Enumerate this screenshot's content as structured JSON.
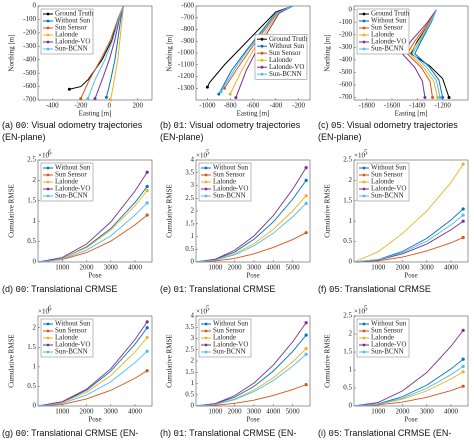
{
  "chart_data": [
    {
      "type": "trajectory",
      "caption": {
        "label": "(a)",
        "seq": "00",
        "text": ": Visual odometry trajectories (EN-plane)"
      },
      "xlabel": "Easting [m]",
      "ylabel": "Northing [m]",
      "xlim": [
        -500,
        300
      ],
      "ylim": [
        -700,
        0
      ],
      "xticks": [
        -400,
        -200,
        0,
        200
      ],
      "yticks": [
        -700,
        -600,
        -500,
        -400,
        -300,
        -200,
        -100,
        0
      ],
      "legend": "upper left",
      "series": [
        {
          "name": "Ground Truth",
          "color": "#000000",
          "x": [
            100,
            60,
            20,
            -50,
            -150,
            -200,
            -280
          ],
          "values": [
            0,
            -100,
            -250,
            -400,
            -550,
            -600,
            -620
          ]
        },
        {
          "name": "Without Sun",
          "color": "#0072bd",
          "x": [
            100,
            80,
            60,
            40,
            10,
            -20
          ],
          "values": [
            0,
            -100,
            -250,
            -400,
            -550,
            -680
          ]
        },
        {
          "name": "Sun Sensor",
          "color": "#d95319",
          "x": [
            100,
            60,
            10,
            -60,
            -140,
            -200
          ],
          "values": [
            0,
            -100,
            -250,
            -400,
            -550,
            -690
          ]
        },
        {
          "name": "Lalonde",
          "color": "#edb120",
          "x": [
            100,
            90,
            75,
            60,
            35,
            10
          ],
          "values": [
            0,
            -100,
            -250,
            -400,
            -550,
            -700
          ]
        },
        {
          "name": "Lalonde-VO",
          "color": "#7e2f8e",
          "x": [
            100,
            70,
            40,
            0,
            -50,
            -100
          ],
          "values": [
            0,
            -100,
            -250,
            -400,
            -550,
            -690
          ]
        },
        {
          "name": "Sun-BCNN",
          "color": "#4dbeee",
          "x": [
            100,
            65,
            25,
            -30,
            -100,
            -150
          ],
          "values": [
            0,
            -100,
            -250,
            -400,
            -550,
            -690
          ]
        }
      ]
    },
    {
      "type": "trajectory",
      "caption": {
        "label": "(b)",
        "seq": "01",
        "text": ": Visual odometry trajectories (EN-plane)"
      },
      "xlabel": "Easting [m]",
      "ylabel": "Northing [m]",
      "xlim": [
        -1100,
        -100
      ],
      "ylim": [
        -1400,
        -600
      ],
      "xticks": [
        -1000,
        -800,
        -600,
        -400,
        -200
      ],
      "yticks": [
        -1300,
        -1200,
        -1100,
        -1000,
        -900,
        -800,
        -700,
        -600
      ],
      "legend": "center right",
      "series": [
        {
          "name": "Ground Truth",
          "color": "#000000",
          "x": [
            -250,
            -400,
            -550,
            -700,
            -850,
            -980,
            -1000
          ],
          "values": [
            -600,
            -650,
            -800,
            -950,
            -1100,
            -1250,
            -1290
          ]
        },
        {
          "name": "Without Sun",
          "color": "#0072bd",
          "x": [
            -250,
            -400,
            -530,
            -660,
            -790,
            -900
          ],
          "values": [
            -600,
            -660,
            -820,
            -980,
            -1150,
            -1350
          ]
        },
        {
          "name": "Sun Sensor",
          "color": "#d95319",
          "x": [
            -250,
            -390,
            -510,
            -630,
            -750,
            -850
          ],
          "values": [
            -600,
            -660,
            -820,
            -980,
            -1150,
            -1300
          ]
        },
        {
          "name": "Lalonde",
          "color": "#edb120",
          "x": [
            -250,
            -380,
            -490,
            -600,
            -700,
            -800
          ],
          "values": [
            -600,
            -660,
            -820,
            -980,
            -1150,
            -1350
          ]
        },
        {
          "name": "Lalonde-VO",
          "color": "#7e2f8e",
          "x": [
            -250,
            -370,
            -470,
            -570,
            -660,
            -750
          ],
          "values": [
            -600,
            -660,
            -820,
            -980,
            -1150,
            -1380
          ]
        },
        {
          "name": "Sun-BCNN",
          "color": "#4dbeee",
          "x": [
            -250,
            -395,
            -520,
            -650,
            -770,
            -880
          ],
          "values": [
            -600,
            -660,
            -820,
            -980,
            -1150,
            -1330
          ]
        }
      ]
    },
    {
      "type": "trajectory",
      "caption": {
        "label": "(c)",
        "seq": "05",
        "text": ": Visual odometry trajectories (EN-plane)"
      },
      "xlabel": "Easting [m]",
      "ylabel": "Northing [m]",
      "xlim": [
        -1900,
        -1000
      ],
      "ylim": [
        -720,
        30
      ],
      "xticks": [
        -1800,
        -1600,
        -1400,
        -1200
      ],
      "yticks": [
        -700,
        -600,
        -500,
        -400,
        -300,
        -200,
        -100,
        0
      ],
      "legend": "upper left",
      "series": [
        {
          "name": "Ground Truth",
          "color": "#000000",
          "x": [
            -1250,
            -1300,
            -1400,
            -1450,
            -1300,
            -1200,
            -1150
          ],
          "values": [
            0,
            -100,
            -250,
            -350,
            -450,
            -550,
            -700
          ]
        },
        {
          "name": "Without Sun",
          "color": "#0072bd",
          "x": [
            -1250,
            -1290,
            -1370,
            -1420,
            -1310,
            -1230,
            -1200
          ],
          "values": [
            0,
            -100,
            -250,
            -350,
            -450,
            -560,
            -700
          ]
        },
        {
          "name": "Sun Sensor",
          "color": "#d95319",
          "x": [
            -1250,
            -1310,
            -1420,
            -1480,
            -1370,
            -1300,
            -1280
          ],
          "values": [
            0,
            -100,
            -250,
            -350,
            -460,
            -570,
            -700
          ]
        },
        {
          "name": "Lalonde",
          "color": "#edb120",
          "x": [
            -1250,
            -1300,
            -1390,
            -1460,
            -1350,
            -1270,
            -1240
          ],
          "values": [
            0,
            -100,
            -250,
            -350,
            -460,
            -570,
            -700
          ]
        },
        {
          "name": "Lalonde-VO",
          "color": "#7e2f8e",
          "x": [
            -1250,
            -1320,
            -1450,
            -1520,
            -1420,
            -1360,
            -1340
          ],
          "values": [
            0,
            -100,
            -250,
            -350,
            -460,
            -570,
            -700
          ]
        },
        {
          "name": "Sun-BCNN",
          "color": "#4dbeee",
          "x": [
            -1250,
            -1295,
            -1380,
            -1440,
            -1330,
            -1250,
            -1220
          ],
          "values": [
            0,
            -100,
            -250,
            -350,
            -455,
            -565,
            -700
          ]
        }
      ]
    },
    {
      "type": "line",
      "caption": {
        "label": "(d)",
        "seq": "00",
        "text": ": Translational CRMSE"
      },
      "xlabel": "Pose",
      "ylabel": "Cumulative RMSE",
      "y_scale_label": "×10",
      "y_scale_exponent": "6",
      "x": [
        0,
        1000,
        2000,
        3000,
        4000,
        4500
      ],
      "xlim": [
        0,
        4700
      ],
      "ylim": [
        0,
        2.5
      ],
      "xticks": [
        1000,
        2000,
        3000,
        4000
      ],
      "yticks": [
        0,
        0.5,
        1,
        1.5,
        2,
        2.5
      ],
      "legend": "upper left",
      "series": [
        {
          "name": "Without Sun",
          "color": "#0072bd",
          "values": [
            0,
            0.09,
            0.37,
            0.82,
            1.46,
            1.85
          ]
        },
        {
          "name": "Sun Sensor",
          "color": "#d95319",
          "values": [
            0,
            0.06,
            0.23,
            0.51,
            0.91,
            1.15
          ]
        },
        {
          "name": "Lalonde",
          "color": "#edb120",
          "values": [
            0,
            0.09,
            0.35,
            0.78,
            1.38,
            1.75
          ]
        },
        {
          "name": "Lalonde-VO",
          "color": "#7e2f8e",
          "values": [
            0,
            0.11,
            0.44,
            0.98,
            1.74,
            2.2
          ]
        },
        {
          "name": "Sun-BCNN",
          "color": "#4dbeee",
          "values": [
            0,
            0.07,
            0.29,
            0.64,
            1.15,
            1.45
          ]
        }
      ]
    },
    {
      "type": "line",
      "caption": {
        "label": "(e)",
        "seq": "01",
        "text": ": Translational CRMSE"
      },
      "xlabel": "Pose",
      "ylabel": "Cumulative RMSE",
      "y_scale_label": "×10",
      "y_scale_exponent": "5",
      "x": [
        0,
        1000,
        2000,
        3000,
        4000,
        5000,
        5700
      ],
      "xlim": [
        0,
        5900
      ],
      "ylim": [
        0,
        4
      ],
      "xticks": [
        1000,
        2000,
        3000,
        4000,
        5000
      ],
      "yticks": [
        0,
        0.5,
        1,
        1.5,
        2,
        2.5,
        3,
        3.5,
        4
      ],
      "legend": "upper left",
      "series": [
        {
          "name": "Without Sun",
          "color": "#0072bd",
          "values": [
            0,
            0.1,
            0.39,
            0.89,
            1.57,
            2.46,
            3.2
          ]
        },
        {
          "name": "Sun Sensor",
          "color": "#d95319",
          "values": [
            0,
            0.04,
            0.14,
            0.32,
            0.57,
            0.88,
            1.15
          ]
        },
        {
          "name": "Lalonde",
          "color": "#edb120",
          "values": [
            0,
            0.08,
            0.32,
            0.72,
            1.28,
            2.0,
            2.6
          ]
        },
        {
          "name": "Lalonde-VO",
          "color": "#7e2f8e",
          "values": [
            0,
            0.11,
            0.46,
            1.02,
            1.82,
            2.85,
            3.7
          ]
        },
        {
          "name": "Sun-BCNN",
          "color": "#4dbeee",
          "values": [
            0,
            0.07,
            0.28,
            0.64,
            1.13,
            1.77,
            2.3
          ]
        }
      ]
    },
    {
      "type": "line",
      "caption": {
        "label": "(f)",
        "seq": "05",
        "text": ": Translational CRMSE"
      },
      "xlabel": "Pose",
      "ylabel": "Cumulative RMSE",
      "y_scale_label": "×10",
      "y_scale_exponent": "5",
      "x": [
        0,
        1000,
        2000,
        3000,
        4000,
        4500
      ],
      "xlim": [
        0,
        4700
      ],
      "ylim": [
        0,
        2.5
      ],
      "xticks": [
        1000,
        2000,
        3000,
        4000
      ],
      "yticks": [
        0,
        0.5,
        1,
        1.5,
        2,
        2.5
      ],
      "legend": "upper left",
      "series": [
        {
          "name": "Without Sun",
          "color": "#0072bd",
          "values": [
            0,
            0.06,
            0.26,
            0.58,
            1.03,
            1.3
          ]
        },
        {
          "name": "Sun Sensor",
          "color": "#d95319",
          "values": [
            0,
            0.03,
            0.12,
            0.27,
            0.47,
            0.6
          ]
        },
        {
          "name": "Lalonde",
          "color": "#edb120",
          "values": [
            0,
            0.25,
            0.7,
            1.25,
            1.95,
            2.4
          ]
        },
        {
          "name": "Lalonde-VO",
          "color": "#7e2f8e",
          "values": [
            0,
            0.05,
            0.2,
            0.44,
            0.79,
            1.0
          ]
        },
        {
          "name": "Sun-BCNN",
          "color": "#4dbeee",
          "values": [
            0,
            0.06,
            0.23,
            0.51,
            0.91,
            1.15
          ]
        }
      ]
    },
    {
      "type": "line",
      "caption": {
        "label": "(g)",
        "seq": "00",
        "text": ": Translational CRMSE (EN-plane)"
      },
      "xlabel": "Pose",
      "ylabel": "Cumulative RMSE",
      "y_scale_label": "×10",
      "y_scale_exponent": "6",
      "x": [
        0,
        1000,
        2000,
        3000,
        4000,
        4500
      ],
      "xlim": [
        0,
        4700
      ],
      "ylim": [
        0,
        2.3
      ],
      "xticks": [
        1000,
        2000,
        3000,
        4000
      ],
      "yticks": [
        0,
        0.5,
        1,
        1.5,
        2
      ],
      "legend": "upper left",
      "series": [
        {
          "name": "Without Sun",
          "color": "#0072bd",
          "values": [
            0,
            0.1,
            0.4,
            0.89,
            1.58,
            2.0
          ]
        },
        {
          "name": "Sun Sensor",
          "color": "#d95319",
          "values": [
            0,
            0.04,
            0.18,
            0.4,
            0.71,
            0.9
          ]
        },
        {
          "name": "Lalonde",
          "color": "#edb120",
          "values": [
            0,
            0.09,
            0.35,
            0.78,
            1.38,
            1.75
          ]
        },
        {
          "name": "Lalonde-VO",
          "color": "#7e2f8e",
          "values": [
            0,
            0.11,
            0.43,
            0.95,
            1.7,
            2.15
          ]
        },
        {
          "name": "Sun-BCNN",
          "color": "#4dbeee",
          "values": [
            0,
            0.07,
            0.28,
            0.62,
            1.11,
            1.4
          ]
        }
      ]
    },
    {
      "type": "line",
      "caption": {
        "label": "(h)",
        "seq": "01",
        "text": ": Translational CRMSE (EN-plane)"
      },
      "xlabel": "Pose",
      "ylabel": "Cumulative RMSE",
      "y_scale_label": "×10",
      "y_scale_exponent": "5",
      "x": [
        0,
        1000,
        2000,
        3000,
        4000,
        5000,
        5700
      ],
      "xlim": [
        0,
        5900
      ],
      "ylim": [
        0,
        4
      ],
      "xticks": [
        1000,
        2000,
        3000,
        4000,
        5000
      ],
      "yticks": [
        0,
        0.5,
        1,
        1.5,
        2,
        2.5,
        3,
        3.5,
        4
      ],
      "legend": "upper left",
      "series": [
        {
          "name": "Without Sun",
          "color": "#0072bd",
          "values": [
            0,
            0.1,
            0.39,
            0.87,
            1.55,
            2.42,
            3.15
          ]
        },
        {
          "name": "Sun Sensor",
          "color": "#d95319",
          "values": [
            0,
            0.03,
            0.12,
            0.26,
            0.47,
            0.73,
            0.95
          ]
        },
        {
          "name": "Lalonde",
          "color": "#edb120",
          "values": [
            0,
            0.08,
            0.31,
            0.71,
            1.25,
            1.96,
            2.55
          ]
        },
        {
          "name": "Lalonde-VO",
          "color": "#7e2f8e",
          "values": [
            0,
            0.11,
            0.46,
            1.02,
            1.82,
            2.85,
            3.7
          ]
        },
        {
          "name": "Sun-BCNN",
          "color": "#4dbeee",
          "values": [
            0,
            0.07,
            0.28,
            0.64,
            1.13,
            1.77,
            2.3
          ]
        }
      ]
    },
    {
      "type": "line",
      "caption": {
        "label": "(i)",
        "seq": "05",
        "text": ": Translational CRMSE (EN-plane)"
      },
      "xlabel": "Pose",
      "ylabel": "Cumulative RMSE",
      "y_scale_label": "×10",
      "y_scale_exponent": "5",
      "x": [
        0,
        1000,
        2000,
        3000,
        4000,
        4500
      ],
      "xlim": [
        0,
        4700
      ],
      "ylim": [
        0,
        2.5
      ],
      "xticks": [
        1000,
        2000,
        3000,
        4000
      ],
      "yticks": [
        0,
        0.5,
        1,
        1.5,
        2,
        2.5
      ],
      "legend": "upper left",
      "series": [
        {
          "name": "Without Sun",
          "color": "#0072bd",
          "values": [
            0,
            0.06,
            0.26,
            0.58,
            1.03,
            1.3
          ]
        },
        {
          "name": "Sun Sensor",
          "color": "#d95319",
          "values": [
            0,
            0.03,
            0.11,
            0.24,
            0.43,
            0.55
          ]
        },
        {
          "name": "Lalonde",
          "color": "#edb120",
          "values": [
            0,
            0.05,
            0.19,
            0.42,
            0.75,
            0.95
          ]
        },
        {
          "name": "Lalonde-VO",
          "color": "#7e2f8e",
          "values": [
            0,
            0.1,
            0.42,
            0.93,
            1.66,
            2.1
          ]
        },
        {
          "name": "Sun-BCNN",
          "color": "#4dbeee",
          "values": [
            0,
            0.05,
            0.22,
            0.49,
            0.87,
            1.1
          ]
        }
      ]
    }
  ]
}
